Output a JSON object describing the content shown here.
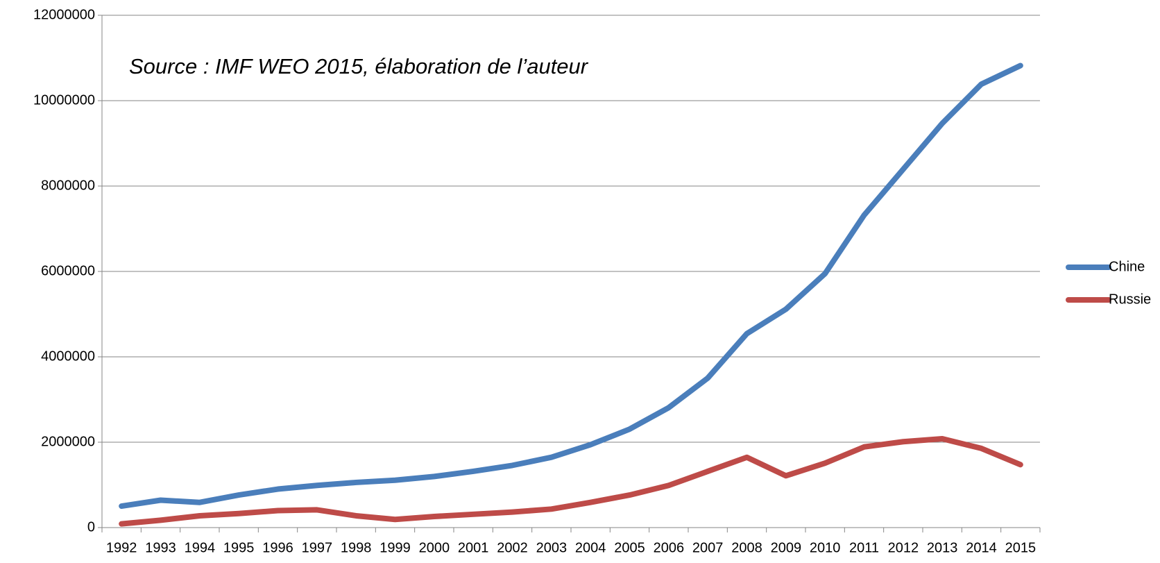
{
  "chart_data": {
    "type": "line",
    "annotation": "Source : IMF WEO 2015, élaboration de l’auteur",
    "categories": [
      "1992",
      "1993",
      "1994",
      "1995",
      "1996",
      "1997",
      "1998",
      "1999",
      "2000",
      "2001",
      "2002",
      "2003",
      "2004",
      "2005",
      "2006",
      "2007",
      "2008",
      "2009",
      "2010",
      "2011",
      "2012",
      "2013",
      "2014",
      "2015"
    ],
    "series": [
      {
        "name": "Chine",
        "color": "#4a7ebb",
        "values": [
          503000,
          642000,
          590000,
          763000,
          902000,
          988000,
          1058000,
          1110000,
          1197000,
          1318000,
          1457000,
          1647000,
          1942000,
          2306000,
          2809000,
          3503000,
          4543000,
          5116000,
          5948000,
          7318000,
          8393000,
          9468000,
          10387000,
          10821000
        ]
      },
      {
        "name": "Russie",
        "color": "#be4b48",
        "values": [
          87000,
          173000,
          277000,
          329000,
          399000,
          416000,
          277000,
          191000,
          260000,
          312000,
          364000,
          434000,
          590000,
          763000,
          988000,
          1318000,
          1647000,
          1214000,
          1509000,
          1890000,
          2012000,
          2081000,
          1855000,
          1474000
        ]
      }
    ],
    "ylim": [
      0,
      12000000
    ],
    "yticks": [
      0,
      2000000,
      4000000,
      6000000,
      8000000,
      10000000,
      12000000
    ],
    "grid": true,
    "legend": "right"
  }
}
